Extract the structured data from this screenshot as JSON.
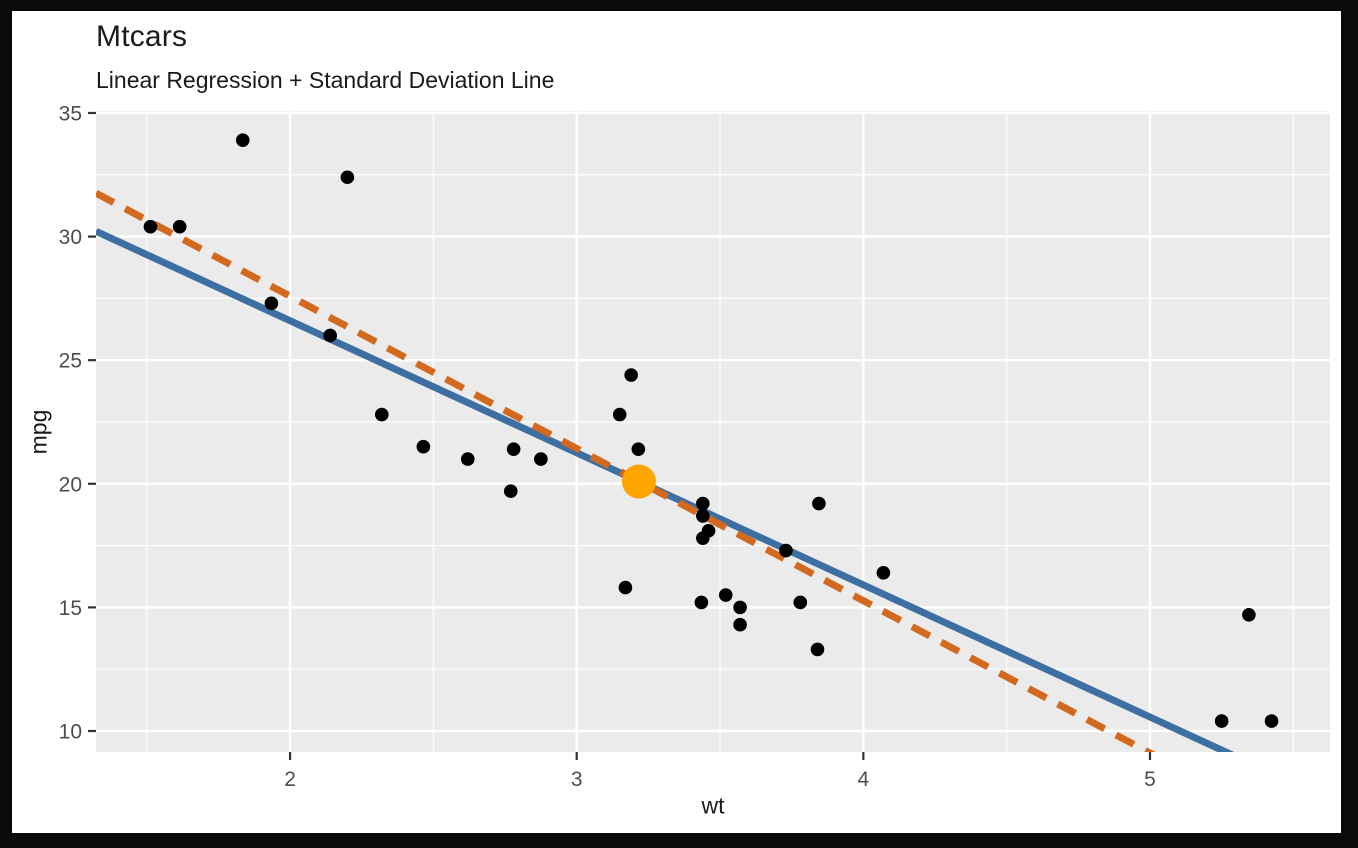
{
  "page": {
    "frame_color": "#0a0a0a",
    "canvas_color": "#ffffff"
  },
  "chart_data": {
    "type": "scatter",
    "title": "Mtcars",
    "subtitle": "Linear Regression + Standard Deviation Line",
    "xlabel": "wt",
    "ylabel": "mpg",
    "xlim": [
      1.323,
      5.628
    ],
    "ylim": [
      9.15,
      35.08
    ],
    "grid": true,
    "legend": "none",
    "x_major_ticks": [
      2,
      3,
      4,
      5
    ],
    "x_minor_ticks": [
      1.5,
      2.5,
      3.5,
      4.5,
      5.5
    ],
    "y_major_ticks": [
      10,
      15,
      20,
      25,
      30,
      35
    ],
    "y_minor_ticks": [
      12.5,
      17.5,
      22.5,
      27.5,
      32.5
    ],
    "panel_background": "#EBEBEB",
    "gridline_color": "#FFFFFF",
    "tick_label_color": "#4d4d4d",
    "tick_mark_color": "#333333",
    "points": {
      "color": "#000000",
      "radius": 6.8,
      "data": [
        [
          2.62,
          21.0
        ],
        [
          2.875,
          21.0
        ],
        [
          2.32,
          22.8
        ],
        [
          3.215,
          21.4
        ],
        [
          3.44,
          18.7
        ],
        [
          3.46,
          18.1
        ],
        [
          3.57,
          14.3
        ],
        [
          3.19,
          24.4
        ],
        [
          3.15,
          22.8
        ],
        [
          3.44,
          19.2
        ],
        [
          3.44,
          17.8
        ],
        [
          4.07,
          16.4
        ],
        [
          3.73,
          17.3
        ],
        [
          3.78,
          15.2
        ],
        [
          5.25,
          10.4
        ],
        [
          5.424,
          10.4
        ],
        [
          5.345,
          14.7
        ],
        [
          2.2,
          32.4
        ],
        [
          1.615,
          30.4
        ],
        [
          1.835,
          33.9
        ],
        [
          2.465,
          21.5
        ],
        [
          3.52,
          15.5
        ],
        [
          3.435,
          15.2
        ],
        [
          3.84,
          13.3
        ],
        [
          3.845,
          19.2
        ],
        [
          1.935,
          27.3
        ],
        [
          2.14,
          26.0
        ],
        [
          1.513,
          30.4
        ],
        [
          3.17,
          15.8
        ],
        [
          2.77,
          19.7
        ],
        [
          3.57,
          15.0
        ],
        [
          2.78,
          21.4
        ]
      ]
    },
    "series": [
      {
        "name": "linear-regression-line",
        "style": "solid",
        "color": "#3D6FA3",
        "width": 7,
        "slope": -5.344,
        "intercept": 37.285
      },
      {
        "name": "standard-deviation-line",
        "style": "dashed",
        "dash": [
          20,
          13
        ],
        "color": "#D2691E",
        "width": 7,
        "slope": -6.159,
        "through": [
          3.2172,
          20.091
        ]
      }
    ],
    "mean_point": {
      "x": 3.2172,
      "y": 20.091,
      "color": "#FFA500",
      "radius": 17
    }
  }
}
